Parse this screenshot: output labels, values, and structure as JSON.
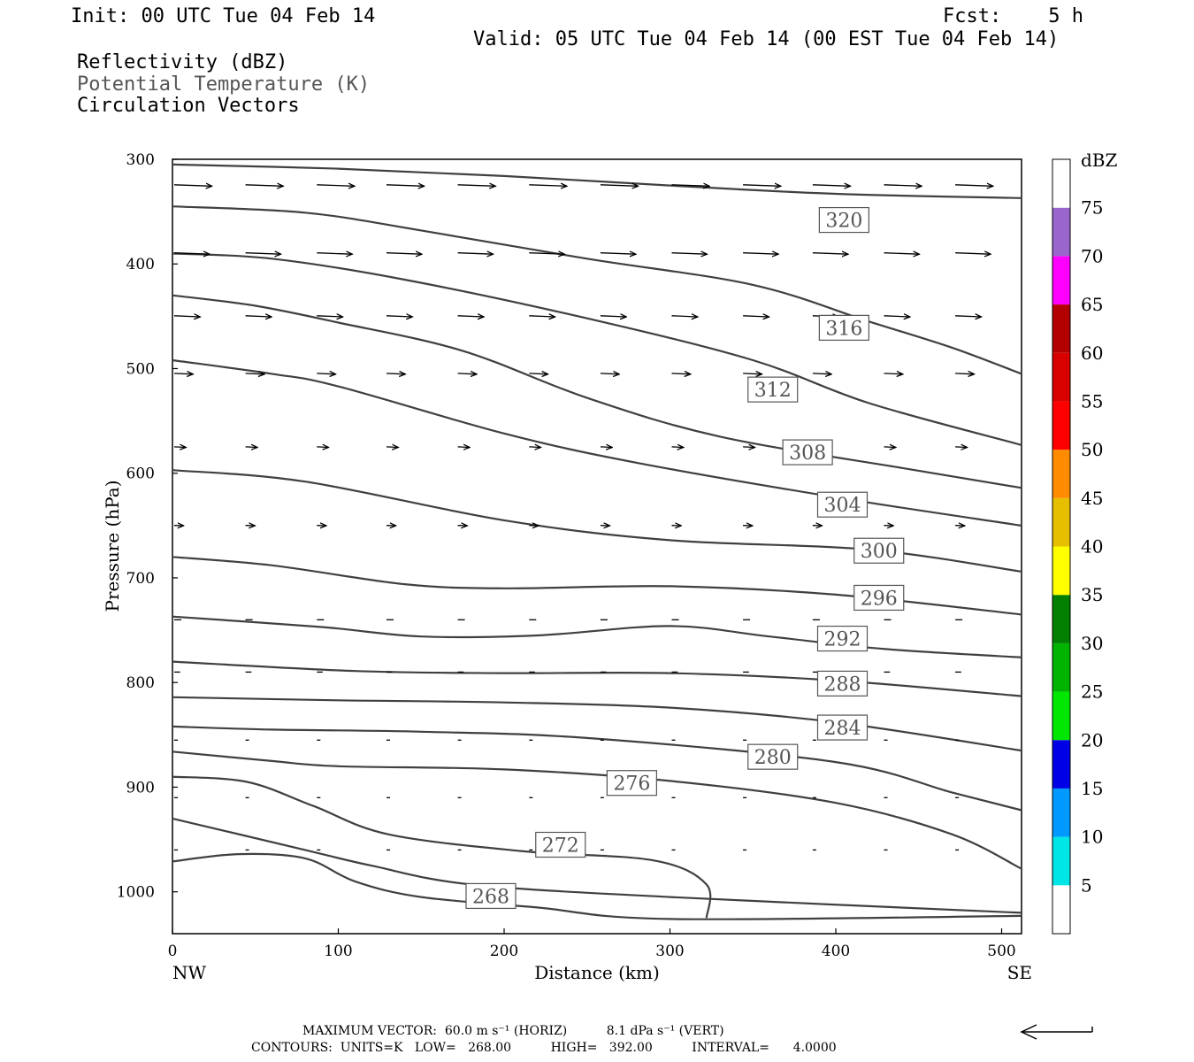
{
  "header": {
    "init": "Init: 00 UTC Tue 04 Feb 14",
    "fcst": "Fcst:    5 h",
    "valid": "Valid: 05 UTC Tue 04 Feb 14 (00 EST Tue 04 Feb 14)",
    "fields": [
      {
        "label": "Reflectivity (dBZ)",
        "color": "#000000"
      },
      {
        "label": "Potential Temperature (K)",
        "color": "#555555"
      },
      {
        "label": "Circulation Vectors",
        "color": "#000000"
      }
    ]
  },
  "chart_data": {
    "type": "cross-section",
    "xlabel": "Distance (km)",
    "ylabel": "Pressure (hPa)",
    "xlim": [
      0,
      512
    ],
    "ylim": [
      300,
      1040
    ],
    "y_inverted": true,
    "x_ticks": [
      0,
      100,
      200,
      300,
      400,
      500
    ],
    "y_ticks": [
      300,
      400,
      500,
      600,
      700,
      800,
      900,
      1000
    ],
    "endpoint_labels": {
      "left": "NW",
      "right": "SE"
    },
    "contours": {
      "field": "Potential Temperature",
      "units": "K",
      "line_color": "#404040",
      "lines": [
        {
          "level": 320,
          "points": [
            [
              0,
              305
            ],
            [
              100,
              309
            ],
            [
              200,
              316
            ],
            [
              300,
              325
            ],
            [
              400,
              333
            ],
            [
              512,
              337
            ]
          ],
          "label_at": [
            405,
            358
          ]
        },
        {
          "level": 316,
          "points": [
            [
              0,
              345
            ],
            [
              80,
              351
            ],
            [
              150,
              368
            ],
            [
              250,
              395
            ],
            [
              350,
              420
            ],
            [
              420,
              455
            ],
            [
              470,
              480
            ],
            [
              512,
              505
            ]
          ],
          "label_at": [
            405,
            461
          ]
        },
        {
          "level": 312,
          "points": [
            [
              0,
              390
            ],
            [
              60,
              395
            ],
            [
              140,
              415
            ],
            [
              250,
              452
            ],
            [
              350,
              492
            ],
            [
              420,
              533
            ],
            [
              512,
              573
            ]
          ],
          "label_at": [
            362,
            520
          ]
        },
        {
          "level": 308,
          "points": [
            [
              0,
              430
            ],
            [
              50,
              440
            ],
            [
              100,
              456
            ],
            [
              175,
              483
            ],
            [
              250,
              528
            ],
            [
              330,
              565
            ],
            [
              440,
              595
            ],
            [
              512,
              614
            ]
          ],
          "label_at": [
            383,
            580
          ]
        },
        {
          "level": 304,
          "points": [
            [
              0,
              492
            ],
            [
              60,
              505
            ],
            [
              100,
              517
            ],
            [
              200,
              562
            ],
            [
              280,
              590
            ],
            [
              400,
              623
            ],
            [
              512,
              650
            ]
          ],
          "label_at": [
            404,
            630
          ]
        },
        {
          "level": 300,
          "points": [
            [
              0,
              597
            ],
            [
              80,
              608
            ],
            [
              200,
              645
            ],
            [
              300,
              664
            ],
            [
              420,
              673
            ],
            [
              512,
              694
            ]
          ],
          "label_at": [
            426,
            674
          ]
        },
        {
          "level": 296,
          "points": [
            [
              0,
              680
            ],
            [
              60,
              688
            ],
            [
              140,
              706
            ],
            [
              200,
              710
            ],
            [
              300,
              708
            ],
            [
              400,
              716
            ],
            [
              512,
              735
            ]
          ],
          "label_at": [
            426,
            719
          ]
        },
        {
          "level": 292,
          "points": [
            [
              0,
              737
            ],
            [
              90,
              747
            ],
            [
              150,
              756
            ],
            [
              220,
              755
            ],
            [
              300,
              746
            ],
            [
              360,
              756
            ],
            [
              430,
              768
            ],
            [
              512,
              776
            ]
          ],
          "label_at": [
            404,
            758
          ]
        },
        {
          "level": 288,
          "points": [
            [
              0,
              780
            ],
            [
              110,
              789
            ],
            [
              200,
              791
            ],
            [
              300,
              791
            ],
            [
              400,
              798
            ],
            [
              512,
              813
            ]
          ],
          "label_at": [
            404,
            801
          ]
        },
        {
          "level": 284,
          "points": [
            [
              0,
              814
            ],
            [
              100,
              817
            ],
            [
              200,
              819
            ],
            [
              300,
              824
            ],
            [
              400,
              838
            ],
            [
              512,
              865
            ]
          ],
          "label_at": [
            404,
            843
          ]
        },
        {
          "level": 280,
          "points": [
            [
              0,
              842
            ],
            [
              60,
              845
            ],
            [
              150,
              847
            ],
            [
              250,
              853
            ],
            [
              400,
              876
            ],
            [
              470,
              905
            ],
            [
              512,
              922
            ]
          ],
          "label_at": [
            362,
            871
          ]
        },
        {
          "level": 276,
          "points": [
            [
              0,
              866
            ],
            [
              60,
              875
            ],
            [
              100,
              880
            ],
            [
              200,
              883
            ],
            [
              300,
              894
            ],
            [
              400,
              915
            ],
            [
              470,
              945
            ],
            [
              512,
              978
            ]
          ],
          "label_at": [
            277,
            896
          ]
        },
        {
          "level": 272,
          "points": [
            [
              0,
              890
            ],
            [
              45,
              895
            ],
            [
              85,
              918
            ],
            [
              130,
              945
            ],
            [
              210,
              961
            ],
            [
              290,
              970
            ],
            [
              322,
              993
            ],
            [
              322,
              1025
            ]
          ],
          "label_at": [
            234,
            955
          ]
        },
        {
          "level": 268,
          "points": [
            [
              0,
              930
            ],
            [
              80,
              960
            ],
            [
              120,
              975
            ],
            [
              180,
              993
            ],
            [
              300,
              1005
            ],
            [
              512,
              1020
            ]
          ],
          "label_at": [
            192,
            1004
          ]
        },
        {
          "level": 268,
          "points": [
            [
              0,
              971
            ],
            [
              40,
              964
            ],
            [
              80,
              968
            ],
            [
              110,
              990
            ],
            [
              150,
              1005
            ],
            [
              220,
              1015
            ],
            [
              300,
              1026
            ],
            [
              512,
              1023
            ]
          ],
          "label_at": null
        }
      ]
    },
    "vectors": {
      "field": "Circulation Vectors",
      "levels_hpa": [
        325,
        390,
        450,
        505,
        575,
        650,
        740,
        790,
        855,
        910,
        960
      ],
      "x_km": [
        0,
        43,
        86,
        128,
        171,
        214,
        257,
        300,
        343,
        385,
        428,
        471
      ],
      "u_ms": [
        32,
        30,
        22,
        16,
        10,
        8,
        6,
        5,
        3,
        2,
        2
      ],
      "w_dpas": [
        0.5,
        0.5,
        0.4,
        0.3,
        0.2,
        0.1,
        0,
        0,
        0,
        0,
        0
      ]
    },
    "colorbar": {
      "title": "dBZ",
      "ticks": [
        5,
        10,
        15,
        20,
        25,
        30,
        35,
        40,
        45,
        50,
        55,
        60,
        65,
        70,
        75
      ],
      "bins": [
        {
          "from": 0,
          "to": 5,
          "color": "#ffffff"
        },
        {
          "from": 5,
          "to": 10,
          "color": "#00e6e6"
        },
        {
          "from": 10,
          "to": 15,
          "color": "#0099ff"
        },
        {
          "from": 15,
          "to": 20,
          "color": "#0000e6"
        },
        {
          "from": 20,
          "to": 25,
          "color": "#00e600"
        },
        {
          "from": 25,
          "to": 30,
          "color": "#00b300"
        },
        {
          "from": 30,
          "to": 35,
          "color": "#007f00"
        },
        {
          "from": 35,
          "to": 40,
          "color": "#ffff00"
        },
        {
          "from": 40,
          "to": 45,
          "color": "#e6bf00"
        },
        {
          "from": 45,
          "to": 50,
          "color": "#ff8c00"
        },
        {
          "from": 50,
          "to": 55,
          "color": "#ff0000"
        },
        {
          "from": 55,
          "to": 60,
          "color": "#d90000"
        },
        {
          "from": 60,
          "to": 65,
          "color": "#b30000"
        },
        {
          "from": 65,
          "to": 70,
          "color": "#ff00ff"
        },
        {
          "from": 70,
          "to": 75,
          "color": "#9966cc"
        },
        {
          "from": 75,
          "to": 80,
          "color": "#ffffff"
        }
      ]
    }
  },
  "footer": {
    "max_vector": "MAXIMUM VECTOR:  60.0 m s⁻¹ (HORIZ)          8.1 dPa s⁻¹ (VERT)",
    "contours": "CONTOURS:  UNITS=K   LOW=   268.00          HIGH=   392.00          INTERVAL=      4.0000"
  }
}
